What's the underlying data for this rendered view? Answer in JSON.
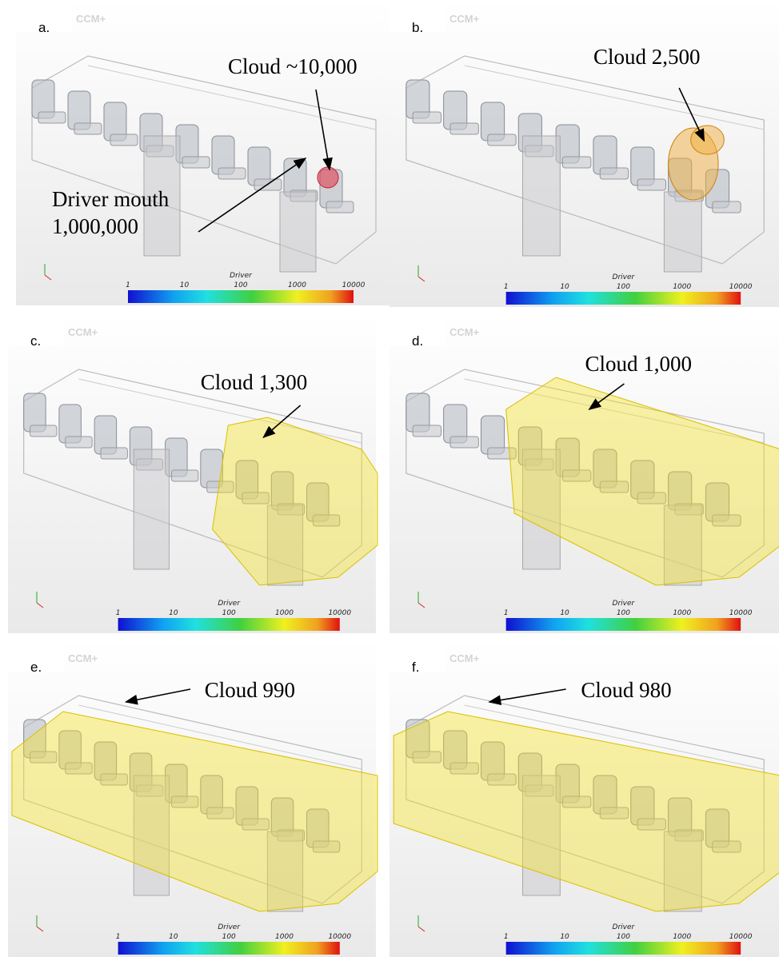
{
  "panels": [
    {
      "label": "a.",
      "watermark": "CCM+",
      "annotations": [
        [
          "Cloud ~10,000"
        ],
        [
          "Driver mouth",
          "1,000,000"
        ]
      ],
      "colorbar": {
        "title": "Driver",
        "ticks": [
          "1",
          "10",
          "100",
          "1000",
          "10000"
        ]
      }
    },
    {
      "label": "b.",
      "watermark": "CCM+",
      "annotations": [
        [
          "Cloud 2,500"
        ]
      ],
      "colorbar": {
        "title": "Driver",
        "ticks": [
          "1",
          "10",
          "100",
          "1000",
          "10000"
        ]
      }
    },
    {
      "label": "c.",
      "watermark": "CCM+",
      "annotations": [
        [
          "Cloud 1,300"
        ]
      ],
      "colorbar": {
        "title": "Driver",
        "ticks": [
          "1",
          "10",
          "100",
          "1000",
          "10000"
        ]
      }
    },
    {
      "label": "d.",
      "watermark": "CCM+",
      "annotations": [
        [
          "Cloud 1,000"
        ]
      ],
      "colorbar": {
        "title": "Driver",
        "ticks": [
          "1",
          "10",
          "100",
          "1000",
          "10000"
        ]
      }
    },
    {
      "label": "e.",
      "watermark": "CCM+",
      "annotations": [
        [
          "Cloud 990"
        ]
      ],
      "colorbar": {
        "title": "Driver",
        "ticks": [
          "1",
          "10",
          "100",
          "1000",
          "10000"
        ]
      }
    },
    {
      "label": "f.",
      "watermark": "CCM+",
      "annotations": [
        [
          "Cloud 980"
        ]
      ],
      "colorbar": {
        "title": "Driver",
        "ticks": [
          "1",
          "10",
          "100",
          "1000",
          "10000"
        ]
      }
    }
  ]
}
